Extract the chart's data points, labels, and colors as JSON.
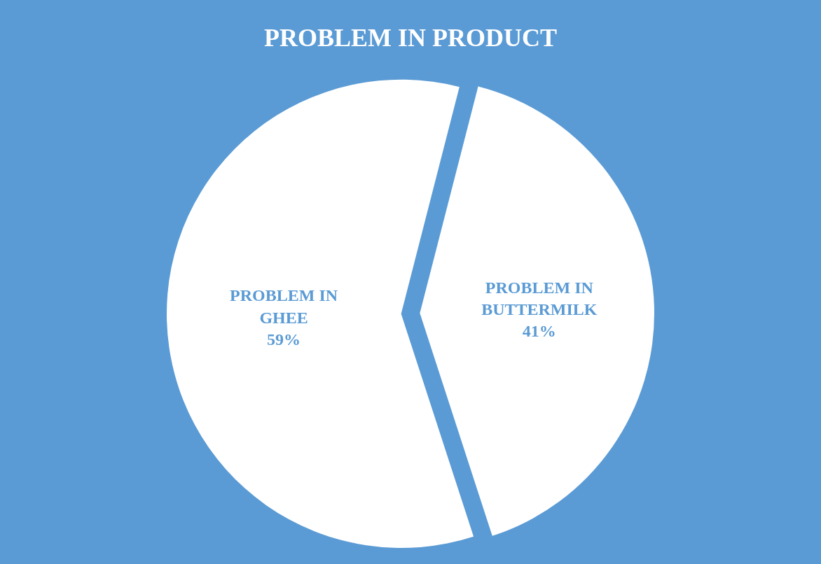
{
  "chart_data": {
    "type": "pie",
    "title": "PROBLEM IN PRODUCT",
    "categories": [
      "PROBLEM IN GHEE",
      "PROBLEM IN BUTTERMILK"
    ],
    "values": [
      59,
      41
    ],
    "value_labels": [
      "59%",
      "41%"
    ],
    "colors": [
      "#ffffff",
      "#ffffff"
    ],
    "legend": false
  }
}
